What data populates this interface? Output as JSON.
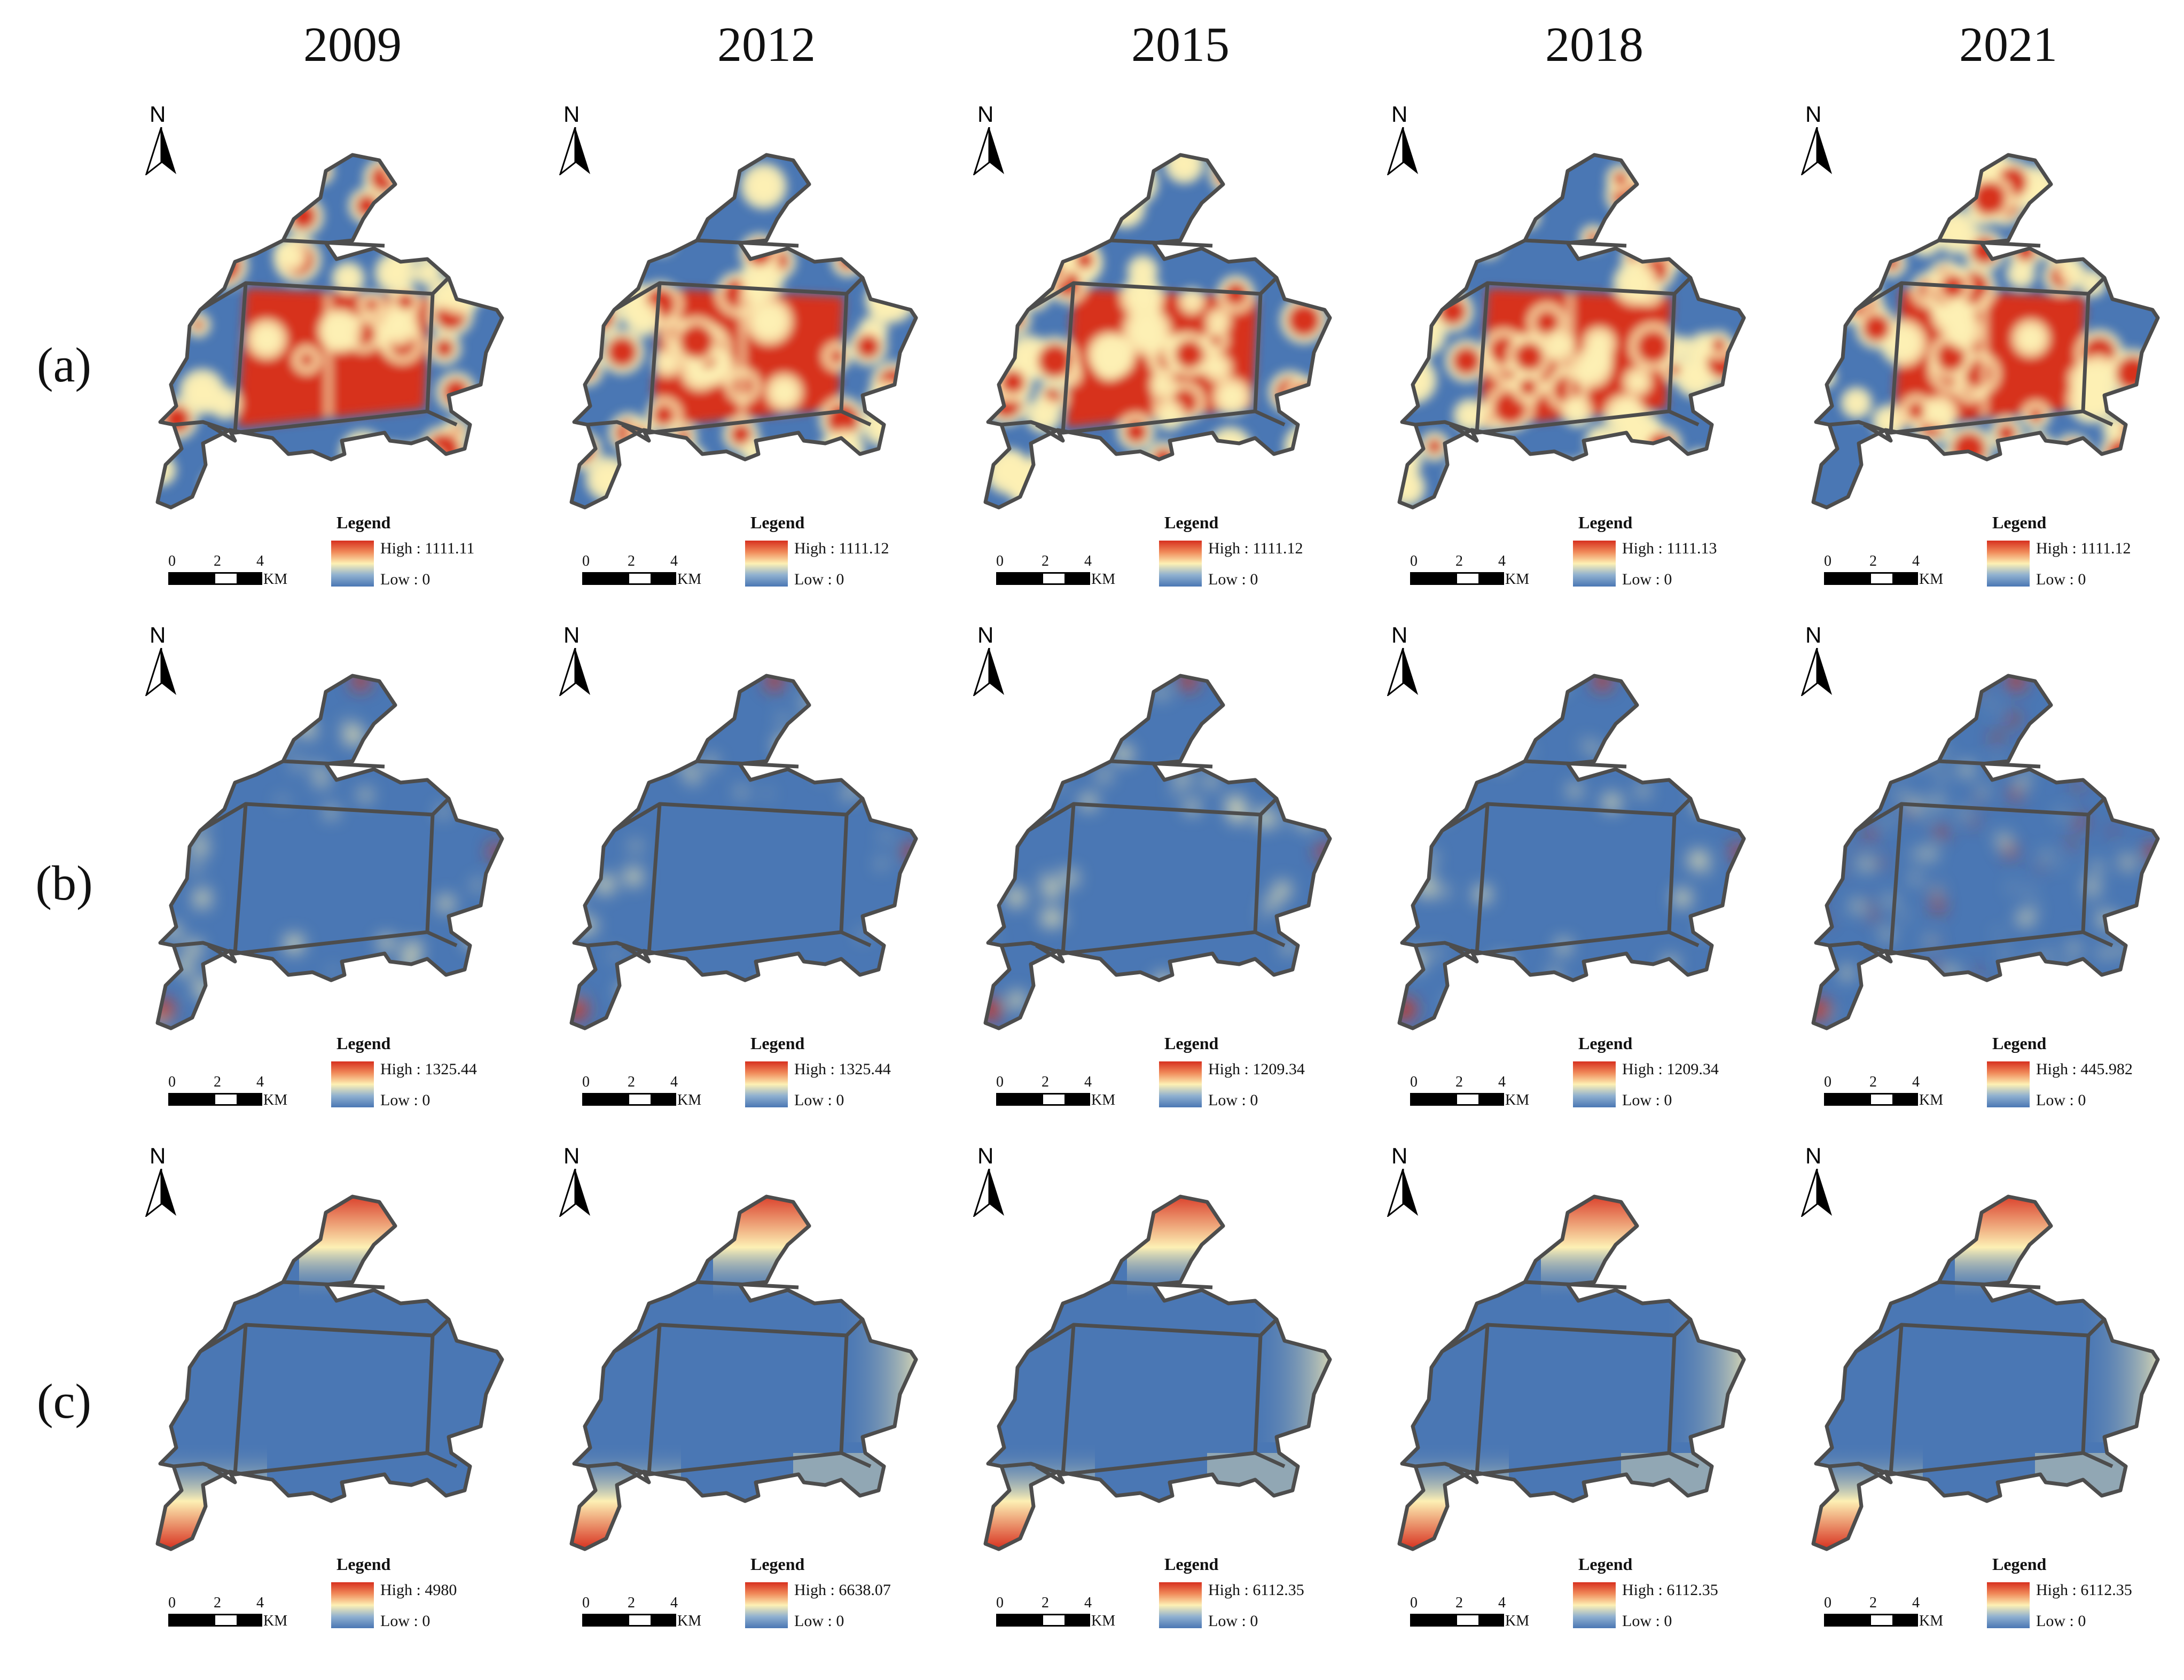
{
  "years": [
    "2009",
    "2012",
    "2015",
    "2018",
    "2021"
  ],
  "rows": [
    {
      "label": "(a)",
      "panels": [
        {
          "year": "2009",
          "legend_title": "Legend",
          "high": "High : 1111.11",
          "low": "Low : 0"
        },
        {
          "year": "2012",
          "legend_title": "Legend",
          "high": "High : 1111.12",
          "low": "Low : 0"
        },
        {
          "year": "2015",
          "legend_title": "Legend",
          "high": "High : 1111.12",
          "low": "Low : 0"
        },
        {
          "year": "2018",
          "legend_title": "Legend",
          "high": "High : 1111.13",
          "low": "Low : 0"
        },
        {
          "year": "2021",
          "legend_title": "Legend",
          "high": "High : 1111.12",
          "low": "Low : 0"
        }
      ]
    },
    {
      "label": "(b)",
      "panels": [
        {
          "year": "2009",
          "legend_title": "Legend",
          "high": "High : 1325.44",
          "low": "Low : 0"
        },
        {
          "year": "2012",
          "legend_title": "Legend",
          "high": "High : 1325.44",
          "low": "Low : 0"
        },
        {
          "year": "2015",
          "legend_title": "Legend",
          "high": "High : 1209.34",
          "low": "Low : 0"
        },
        {
          "year": "2018",
          "legend_title": "Legend",
          "high": "High : 1209.34",
          "low": "Low : 0"
        },
        {
          "year": "2021",
          "legend_title": "Legend",
          "high": "High : 445.982",
          "low": "Low : 0"
        }
      ]
    },
    {
      "label": "(c)",
      "panels": [
        {
          "year": "2009",
          "legend_title": "Legend",
          "high": "High : 4980",
          "low": "Low : 0"
        },
        {
          "year": "2012",
          "legend_title": "Legend",
          "high": "High : 6638.07",
          "low": "Low : 0"
        },
        {
          "year": "2015",
          "legend_title": "Legend",
          "high": "High : 6112.35",
          "low": "Low : 0"
        },
        {
          "year": "2018",
          "legend_title": "Legend",
          "high": "High : 6112.35",
          "low": "Low : 0"
        },
        {
          "year": "2021",
          "legend_title": "Legend",
          "high": "High : 6112.35",
          "low": "Low : 0"
        }
      ]
    }
  ],
  "north_label": "N",
  "scale": {
    "ticks": [
      "0",
      "2",
      "4"
    ],
    "unit": "KM"
  },
  "colors": {
    "low": "#4a77b4",
    "mid": "#fdf0b4",
    "high": "#d7301f",
    "boundary": "#4d4d4d"
  }
}
